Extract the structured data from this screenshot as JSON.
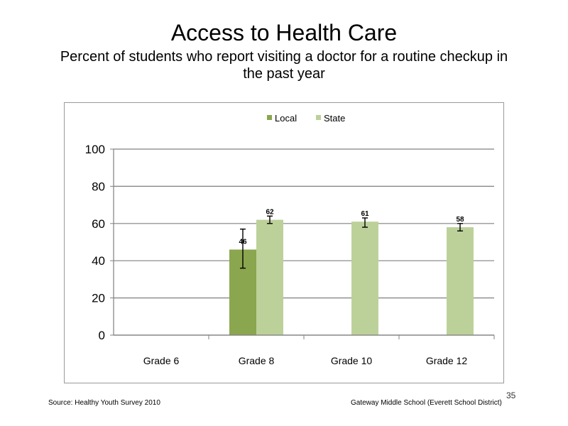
{
  "slide": {
    "title": "Access to Health Care",
    "subtitle": "Percent of students who report visiting a doctor for a routine checkup in the past year",
    "source": "Source: Healthy Youth Survey 2010",
    "school": "Gateway Middle School (Everett School District)",
    "page_number": "35"
  },
  "chart_data": {
    "type": "bar",
    "categories": [
      "Grade 6",
      "Grade 8",
      "Grade 10",
      "Grade 12"
    ],
    "series": [
      {
        "name": "Local",
        "color": "#8aa64e",
        "values": [
          null,
          46,
          null,
          null
        ],
        "error_low": [
          null,
          36,
          null,
          null
        ],
        "error_high": [
          null,
          57,
          null,
          null
        ]
      },
      {
        "name": "State",
        "color": "#bcd199",
        "values": [
          null,
          62,
          61,
          58
        ],
        "error_low": [
          null,
          60,
          58,
          56
        ],
        "error_high": [
          null,
          64,
          63,
          60
        ]
      }
    ],
    "ylim": [
      0,
      100
    ],
    "yticks": [
      0,
      20,
      40,
      60,
      80,
      100
    ],
    "grid": true,
    "legend_position": "top",
    "title": "",
    "xlabel": "",
    "ylabel": ""
  }
}
